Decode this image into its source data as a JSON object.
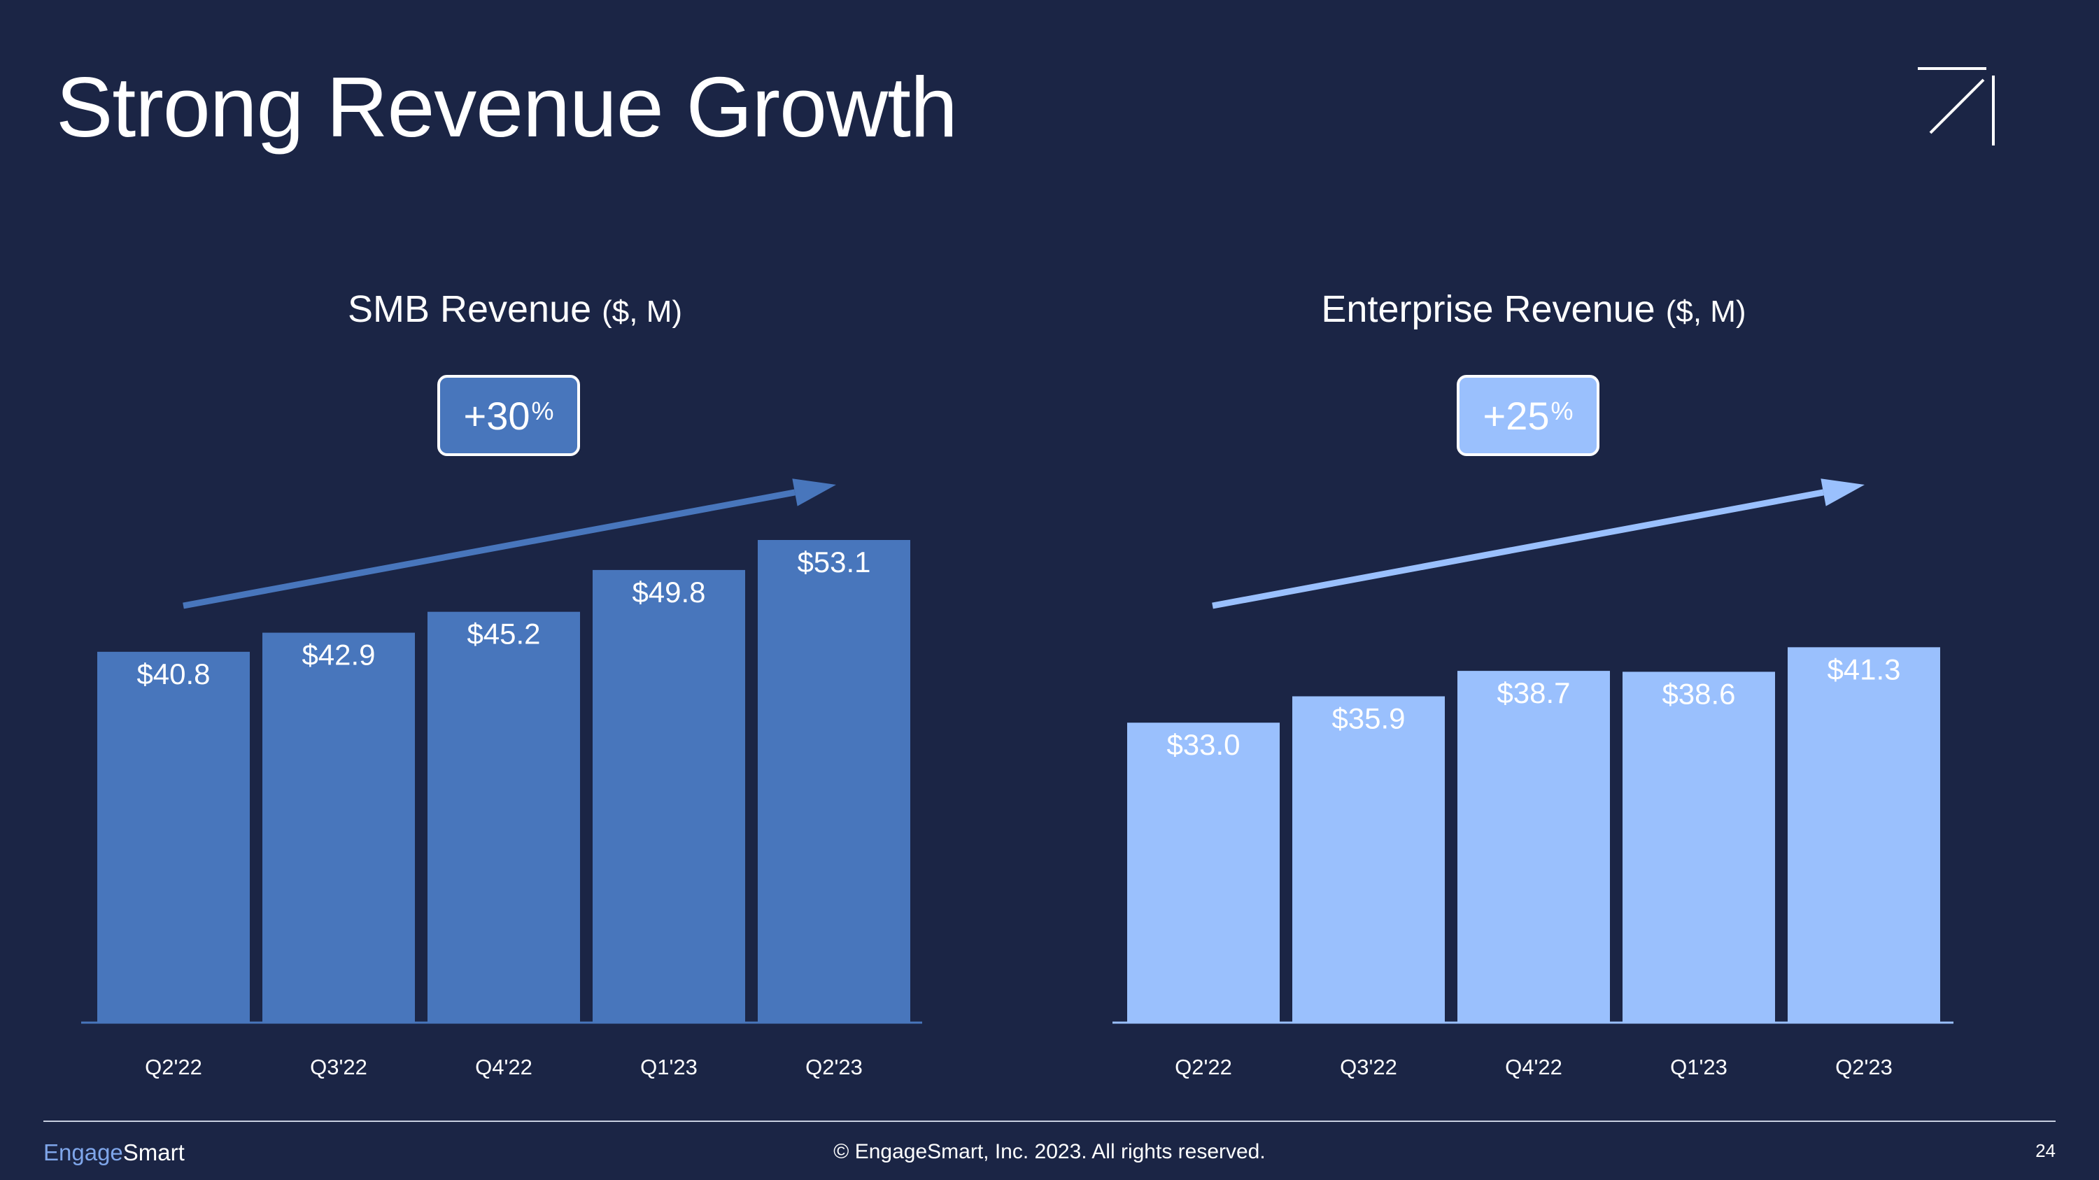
{
  "page": {
    "title": "Strong Revenue Growth",
    "footer": {
      "brand_part1": "Engage",
      "brand_part2": "Smart",
      "copyright": "© EngageSmart, Inc. 2023. All rights reserved.",
      "page_number": "24"
    }
  },
  "colors": {
    "background": "#1b2545",
    "smb": "#4876bc",
    "enterprise": "#9ac0fd",
    "text": "#ffffff"
  },
  "chart_data": [
    {
      "type": "bar",
      "title": "SMB Revenue",
      "title_unit": "($, M)",
      "growth_value": "+30",
      "growth_unit": "%",
      "categories": [
        "Q2'22",
        "Q3'22",
        "Q4'22",
        "Q1'23",
        "Q2'23"
      ],
      "values": [
        40.8,
        42.9,
        45.2,
        49.8,
        53.1
      ],
      "labels": [
        "$40.8",
        "$42.9",
        "$45.2",
        "$49.8",
        "$53.1"
      ],
      "ylim": [
        0,
        53.1
      ],
      "color": "#4876bc"
    },
    {
      "type": "bar",
      "title": "Enterprise Revenue",
      "title_unit": "($, M)",
      "growth_value": "+25",
      "growth_unit": "%",
      "categories": [
        "Q2'22",
        "Q3'22",
        "Q4'22",
        "Q1'23",
        "Q2'23"
      ],
      "values": [
        33.0,
        35.9,
        38.7,
        38.6,
        41.3
      ],
      "labels": [
        "$33.0",
        "$35.9",
        "$38.7",
        "$38.6",
        "$41.3"
      ],
      "ylim": [
        0,
        53.1
      ],
      "color": "#9ac0fd"
    }
  ]
}
